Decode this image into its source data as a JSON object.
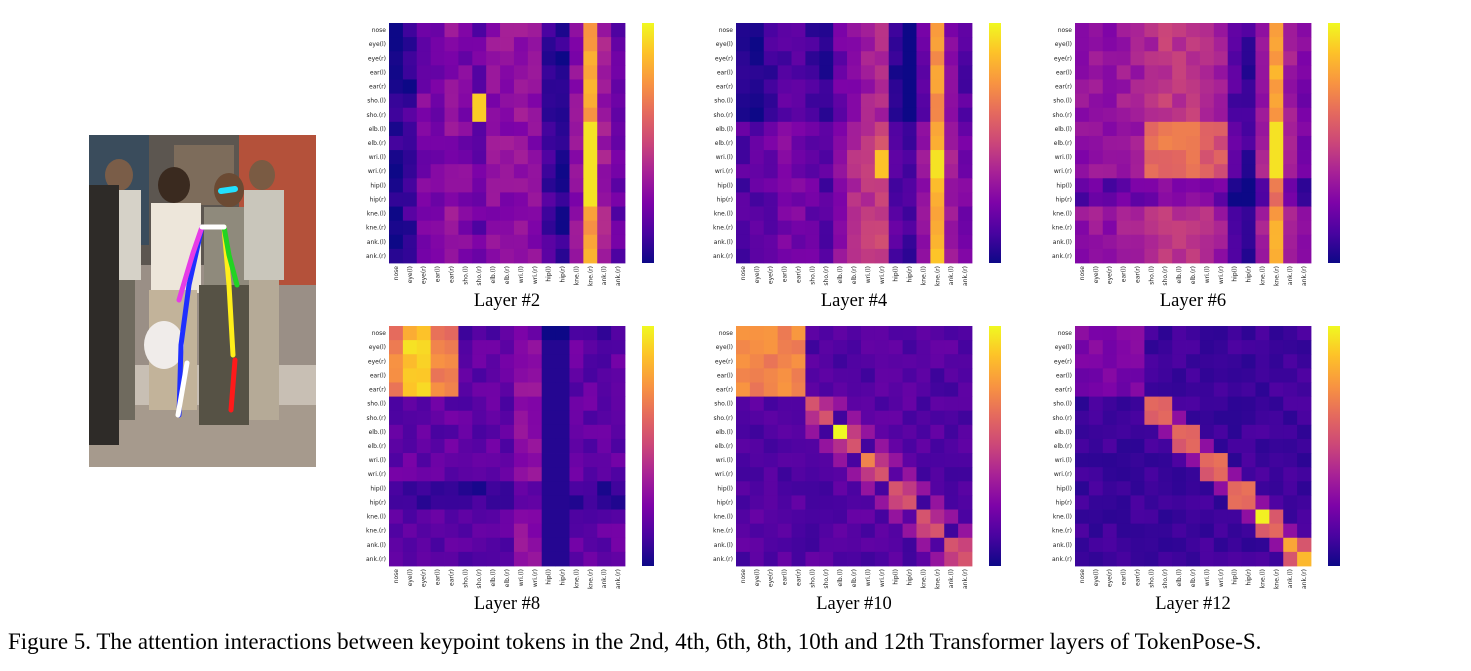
{
  "caption": "Figure 5. The attention interactions between keypoint tokens in the 2nd, 4th, 6th, 8th, 10th and 12th Transformer layers of TokenPose-S.",
  "colormap": "plasma",
  "keypoints": [
    "nose",
    "eye(l)",
    "eye(r)",
    "ear(l)",
    "ear(r)",
    "sho.(l)",
    "sho.(r)",
    "elb.(l)",
    "elb.(r)",
    "wri.(l)",
    "wri.(r)",
    "hip(l)",
    "hip(r)",
    "kne.(l)",
    "kne.(r)",
    "ank.(l)",
    "ank.(r)"
  ],
  "chart_data": [
    {
      "type": "heatmap",
      "title": "Layer #2",
      "pattern": "layer2"
    },
    {
      "type": "heatmap",
      "title": "Layer #4",
      "pattern": "layer4"
    },
    {
      "type": "heatmap",
      "title": "Layer #6",
      "pattern": "layer6"
    },
    {
      "type": "heatmap",
      "title": "Layer #8",
      "pattern": "layer8"
    },
    {
      "type": "heatmap",
      "title": "Layer #10",
      "pattern": "layer10"
    },
    {
      "type": "heatmap",
      "title": "Layer #12",
      "pattern": "layer12"
    }
  ]
}
